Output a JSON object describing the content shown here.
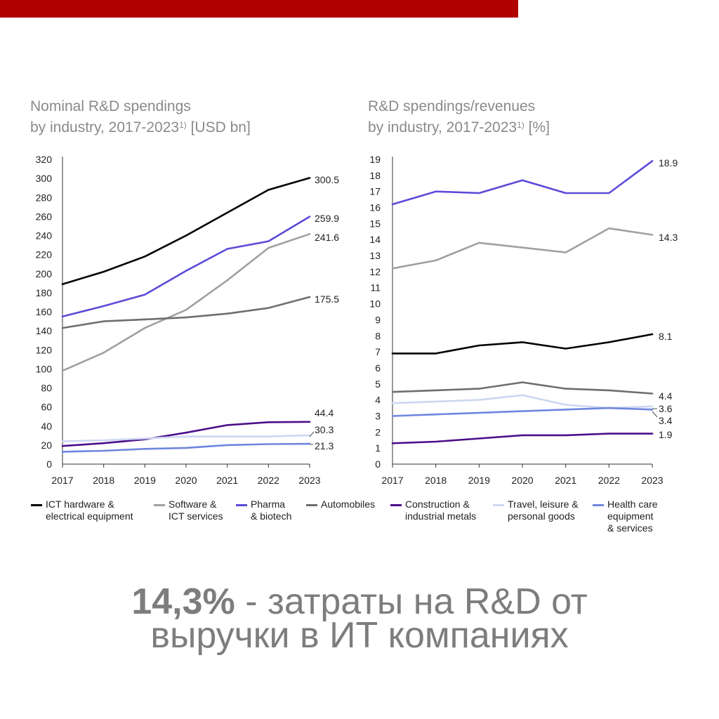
{
  "caption": {
    "highlight": "14,3%",
    "line1_rest": " - затраты на R&D от",
    "line2": "выручки в ИТ компаниях"
  },
  "legend": [
    {
      "lines": [
        "ICT hardware &",
        "electrical equipment"
      ],
      "color": "#000000"
    },
    {
      "lines": [
        "Software &",
        "ICT services"
      ],
      "color": "#a0a0a0"
    },
    {
      "lines": [
        "Pharma",
        "& biotech"
      ],
      "color": "#5b4bd8"
    },
    {
      "lines": [
        "Automobiles"
      ],
      "color": "#6e6e6e"
    },
    {
      "lines": [
        "Construction &",
        "industrial metals"
      ],
      "color": "#4b0f8a"
    },
    {
      "lines": [
        "Travel, leisure &",
        "personal goods"
      ],
      "color": "#cdd7f2"
    },
    {
      "lines": [
        "Health care",
        "equipment",
        "& services"
      ],
      "color": "#6f86df"
    }
  ],
  "chart_data": [
    {
      "type": "line",
      "title": [
        "Nominal R&D spendings",
        "by industry, 2017-2023"
      ],
      "title_note": "1)",
      "title_unit": " [USD bn]",
      "x": [
        "2017",
        "2018",
        "2019",
        "2020",
        "2021",
        "2022",
        "2023"
      ],
      "ylim": [
        0,
        320
      ],
      "yticks": [
        0,
        20,
        40,
        60,
        80,
        100,
        120,
        140,
        160,
        180,
        200,
        220,
        240,
        260,
        280,
        300,
        320
      ],
      "series": [
        {
          "name": "ICT hardware & electrical equipment",
          "color": "#000000",
          "values": [
            189,
            202,
            218,
            240,
            264,
            288,
            300.5
          ]
        },
        {
          "name": "Software & ICT services",
          "color": "#a0a0a0",
          "values": [
            98,
            117,
            143,
            162,
            193,
            227,
            241.6
          ]
        },
        {
          "name": "Pharma & biotech",
          "color": "#5b4bd8",
          "values": [
            155,
            166,
            178,
            203,
            226,
            234,
            259.9
          ]
        },
        {
          "name": "Automobiles",
          "color": "#6e6e6e",
          "values": [
            143,
            150,
            152,
            154,
            158,
            164,
            175.5
          ]
        },
        {
          "name": "Construction & industrial metals",
          "color": "#4b0f8a",
          "values": [
            19,
            22,
            26,
            33,
            41,
            44,
            44.4
          ]
        },
        {
          "name": "Travel, leisure & personal goods",
          "color": "#cdd7f2",
          "values": [
            24,
            25,
            27,
            29,
            29,
            29,
            30.3
          ]
        },
        {
          "name": "Health care equipment & services",
          "color": "#6f86df",
          "values": [
            13,
            14,
            16,
            17,
            20,
            21,
            21.3
          ]
        }
      ],
      "end_labels": [
        "300.5",
        "241.6",
        "259.9",
        "175.5",
        "44.4",
        "30.3",
        "21.3"
      ]
    },
    {
      "type": "line",
      "title": [
        "R&D spendings/revenues",
        "by industry, 2017-2023"
      ],
      "title_note": "1)",
      "title_unit": " [%]",
      "x": [
        "2017",
        "2018",
        "2019",
        "2020",
        "2021",
        "2022",
        "2023"
      ],
      "ylim": [
        0,
        19
      ],
      "yticks": [
        0,
        1,
        2,
        3,
        4,
        5,
        6,
        7,
        8,
        9,
        10,
        11,
        12,
        13,
        14,
        15,
        16,
        17,
        18,
        19
      ],
      "series": [
        {
          "name": "ICT hardware & electrical equipment",
          "color": "#000000",
          "values": [
            6.9,
            6.9,
            7.4,
            7.6,
            7.2,
            7.6,
            8.1
          ]
        },
        {
          "name": "Software & ICT services",
          "color": "#a0a0a0",
          "values": [
            12.2,
            12.7,
            13.8,
            13.5,
            13.2,
            14.7,
            14.3
          ]
        },
        {
          "name": "Pharma & biotech",
          "color": "#5b4bd8",
          "values": [
            16.2,
            17.0,
            16.9,
            17.7,
            16.9,
            16.9,
            18.9
          ]
        },
        {
          "name": "Automobiles",
          "color": "#6e6e6e",
          "values": [
            4.5,
            4.6,
            4.7,
            5.1,
            4.7,
            4.6,
            4.4
          ]
        },
        {
          "name": "Construction & industrial metals",
          "color": "#4b0f8a",
          "values": [
            1.3,
            1.4,
            1.6,
            1.8,
            1.8,
            1.9,
            1.9
          ]
        },
        {
          "name": "Travel, leisure & personal goods",
          "color": "#cdd7f2",
          "values": [
            3.8,
            3.9,
            4.0,
            4.3,
            3.7,
            3.5,
            3.6
          ]
        },
        {
          "name": "Health care equipment & services",
          "color": "#6f86df",
          "values": [
            3.0,
            3.1,
            3.2,
            3.3,
            3.4,
            3.5,
            3.4
          ]
        }
      ],
      "end_labels": [
        "8.1",
        "14.3",
        "18.9",
        "4.4",
        "1.9",
        "3.6",
        "3.4"
      ]
    }
  ]
}
